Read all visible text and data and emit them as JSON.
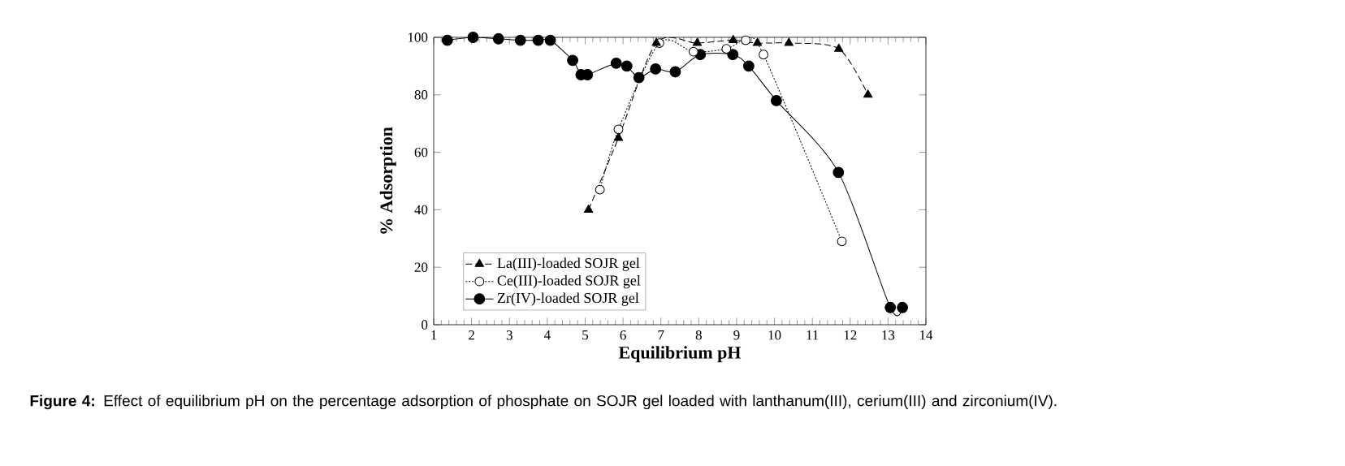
{
  "chart_data": {
    "type": "line",
    "xlabel": "Equilibrium pH",
    "ylabel": "% Adsorption",
    "annotations": [
      "**Figure 4:** Effect of equilibrium pH on the percentage adsorption of phosphate on SOJR gel loaded with lanthanum(III), cerium(III) and zirconium(IV)."
    ],
    "xlim": [
      1,
      14
    ],
    "xticks": [
      1,
      2,
      3,
      4,
      5,
      6,
      7,
      8,
      9,
      10,
      11,
      12,
      13,
      14
    ],
    "ylim": [
      0,
      100
    ],
    "yticks": [
      0,
      20,
      40,
      60,
      80,
      100
    ],
    "legend": "bottom left",
    "grid": false,
    "series": [
      {
        "name": "La(III)-loaded SOJR gel",
        "color": "#000000",
        "marker": "triangle",
        "line_style": "dashed",
        "x": [
          5.09,
          5.88,
          6.88,
          7.96,
          8.91,
          9.55,
          10.38,
          11.7,
          12.47
        ],
        "values": [
          40,
          65,
          98,
          98,
          99,
          98,
          98,
          96,
          80
        ]
      },
      {
        "name": "Ce(III)-loaded SOJR gel",
        "color": "#000000",
        "marker": "open circle",
        "line_style": "dotted",
        "x": [
          5.39,
          5.88,
          6.96,
          7.86,
          8.73,
          9.24,
          9.71,
          11.78
        ],
        "values": [
          47,
          68,
          98,
          95,
          96,
          99,
          94,
          29
        ]
      },
      {
        "name": "Zr(IV)-loaded SOJR gel",
        "color": "#000000",
        "marker": "circle",
        "line_style": "solid",
        "x": [
          1.36,
          2.04,
          2.71,
          3.29,
          3.76,
          4.08,
          4.67,
          4.89,
          5.06,
          5.82,
          6.1,
          6.42,
          6.86,
          7.38,
          8.04,
          8.9,
          9.32,
          10.05,
          11.69,
          13.06,
          13.38
        ],
        "values": [
          99,
          100,
          99.5,
          99,
          99,
          99,
          92,
          87,
          87,
          91,
          90,
          86,
          89,
          88,
          94,
          94,
          90,
          78,
          53,
          6,
          6
        ]
      }
    ]
  }
}
